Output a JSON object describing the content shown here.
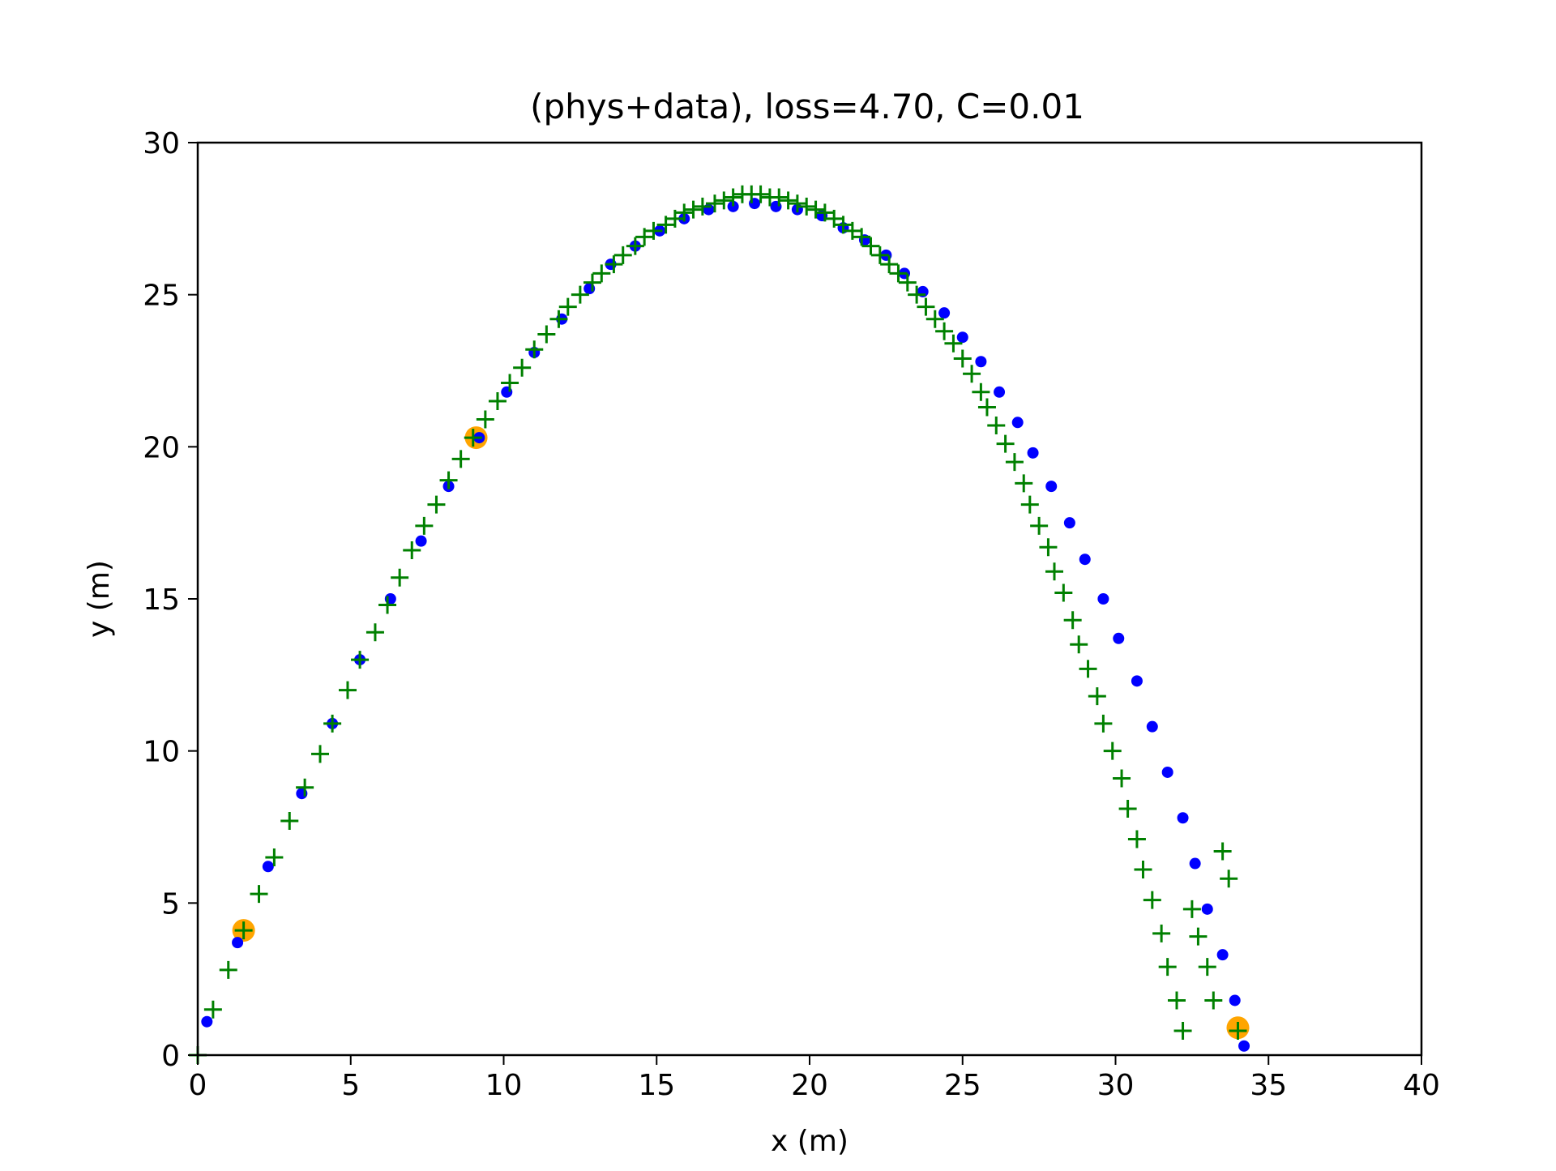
{
  "chart_data": {
    "type": "scatter",
    "title": "(phys+data), loss=4.70, C=0.01",
    "xlabel": "x (m)",
    "ylabel": "y (m)",
    "xlim": [
      0,
      40
    ],
    "ylim": [
      0,
      30
    ],
    "xticks": [
      0,
      5,
      10,
      15,
      20,
      25,
      30,
      35,
      40
    ],
    "yticks": [
      0,
      5,
      10,
      15,
      20,
      25,
      30
    ],
    "grid": false,
    "legend": "none",
    "colors": {
      "true_trajectory": "#0000ff",
      "prediction": "#008000",
      "observations": "#ffa500"
    },
    "series": [
      {
        "marker": "dot",
        "color": "#0000ff",
        "x": [
          0.3,
          1.3,
          2.3,
          3.4,
          4.4,
          5.3,
          6.3,
          7.3,
          8.2,
          9.2,
          10.1,
          11.0,
          11.9,
          12.8,
          13.5,
          14.3,
          15.1,
          15.9,
          16.7,
          17.5,
          18.2,
          18.9,
          19.6,
          20.4,
          21.1,
          21.8,
          22.5,
          23.1,
          23.7,
          24.4,
          25.0,
          25.6,
          26.2,
          26.8,
          27.3,
          27.9,
          28.5,
          29.0,
          29.6,
          30.1,
          30.7,
          31.2,
          31.7,
          32.2,
          32.6,
          33.0,
          33.5,
          33.9,
          34.2
        ],
        "y": [
          1.1,
          3.7,
          6.2,
          8.6,
          10.9,
          13.0,
          15.0,
          16.9,
          18.7,
          20.3,
          21.8,
          23.1,
          24.2,
          25.2,
          26.0,
          26.6,
          27.1,
          27.5,
          27.8,
          27.9,
          28.0,
          27.9,
          27.8,
          27.6,
          27.2,
          26.8,
          26.3,
          25.7,
          25.1,
          24.4,
          23.6,
          22.8,
          21.8,
          20.8,
          19.8,
          18.7,
          17.5,
          16.3,
          15.0,
          13.7,
          12.3,
          10.8,
          9.3,
          7.8,
          6.3,
          4.8,
          3.3,
          1.8,
          0.3
        ]
      },
      {
        "marker": "plus",
        "color": "#008000",
        "x": [
          0.0,
          0.5,
          1.0,
          1.5,
          2.0,
          2.5,
          3.0,
          3.5,
          4.0,
          4.4,
          4.9,
          5.3,
          5.8,
          6.2,
          6.6,
          7.0,
          7.4,
          7.8,
          8.2,
          8.6,
          9.0,
          9.4,
          9.8,
          10.2,
          10.6,
          11.0,
          11.4,
          11.8,
          12.1,
          12.5,
          12.9,
          13.2,
          13.6,
          13.9,
          14.3,
          14.6,
          14.9,
          15.3,
          15.6,
          15.9,
          16.2,
          16.5,
          16.9,
          17.2,
          17.5,
          17.8,
          18.1,
          18.4,
          18.7,
          19.0,
          19.3,
          19.6,
          19.9,
          20.2,
          20.5,
          20.8,
          21.1,
          21.4,
          21.7,
          22.0,
          22.3,
          22.6,
          22.9,
          23.2,
          23.5,
          23.8,
          24.1,
          24.4,
          24.7,
          25.0,
          25.3,
          25.6,
          25.8,
          26.1,
          26.4,
          26.7,
          27.0,
          27.2,
          27.5,
          27.8,
          28.0,
          28.3,
          28.6,
          28.8,
          29.1,
          29.4,
          29.6,
          29.9,
          30.2,
          30.4,
          30.7,
          30.9,
          31.2,
          31.5,
          31.7,
          32.0,
          32.2,
          32.5,
          32.7,
          33.0,
          33.2,
          33.5,
          33.7,
          34.0
        ],
        "y": [
          0.0,
          1.5,
          2.8,
          4.1,
          5.3,
          6.5,
          7.7,
          8.8,
          9.9,
          10.9,
          12.0,
          13.0,
          13.9,
          14.8,
          15.7,
          16.6,
          17.4,
          18.1,
          18.9,
          19.6,
          20.3,
          20.9,
          21.5,
          22.1,
          22.6,
          23.2,
          23.7,
          24.2,
          24.6,
          25.0,
          25.4,
          25.7,
          26.0,
          26.3,
          26.6,
          26.9,
          27.1,
          27.3,
          27.5,
          27.7,
          27.8,
          27.9,
          28.0,
          28.1,
          28.2,
          28.3,
          28.3,
          28.3,
          28.2,
          28.2,
          28.1,
          28.0,
          27.9,
          27.8,
          27.7,
          27.5,
          27.3,
          27.1,
          26.9,
          26.6,
          26.3,
          26.0,
          25.7,
          25.4,
          25.0,
          24.6,
          24.2,
          23.8,
          23.4,
          22.9,
          22.4,
          21.8,
          21.3,
          20.7,
          20.1,
          19.5,
          18.8,
          18.1,
          17.4,
          16.7,
          15.9,
          15.2,
          14.3,
          13.5,
          12.7,
          11.8,
          10.9,
          10.0,
          9.1,
          8.1,
          7.1,
          6.1,
          5.1,
          4.0,
          2.9,
          1.8,
          0.8,
          4.8,
          3.9,
          2.9,
          1.8,
          6.7,
          5.8,
          0.8
        ]
      },
      {
        "marker": "circle",
        "color": "#ffa500",
        "x": [
          1.5,
          9.1,
          34.0
        ],
        "y": [
          4.1,
          20.3,
          0.9
        ]
      }
    ]
  }
}
